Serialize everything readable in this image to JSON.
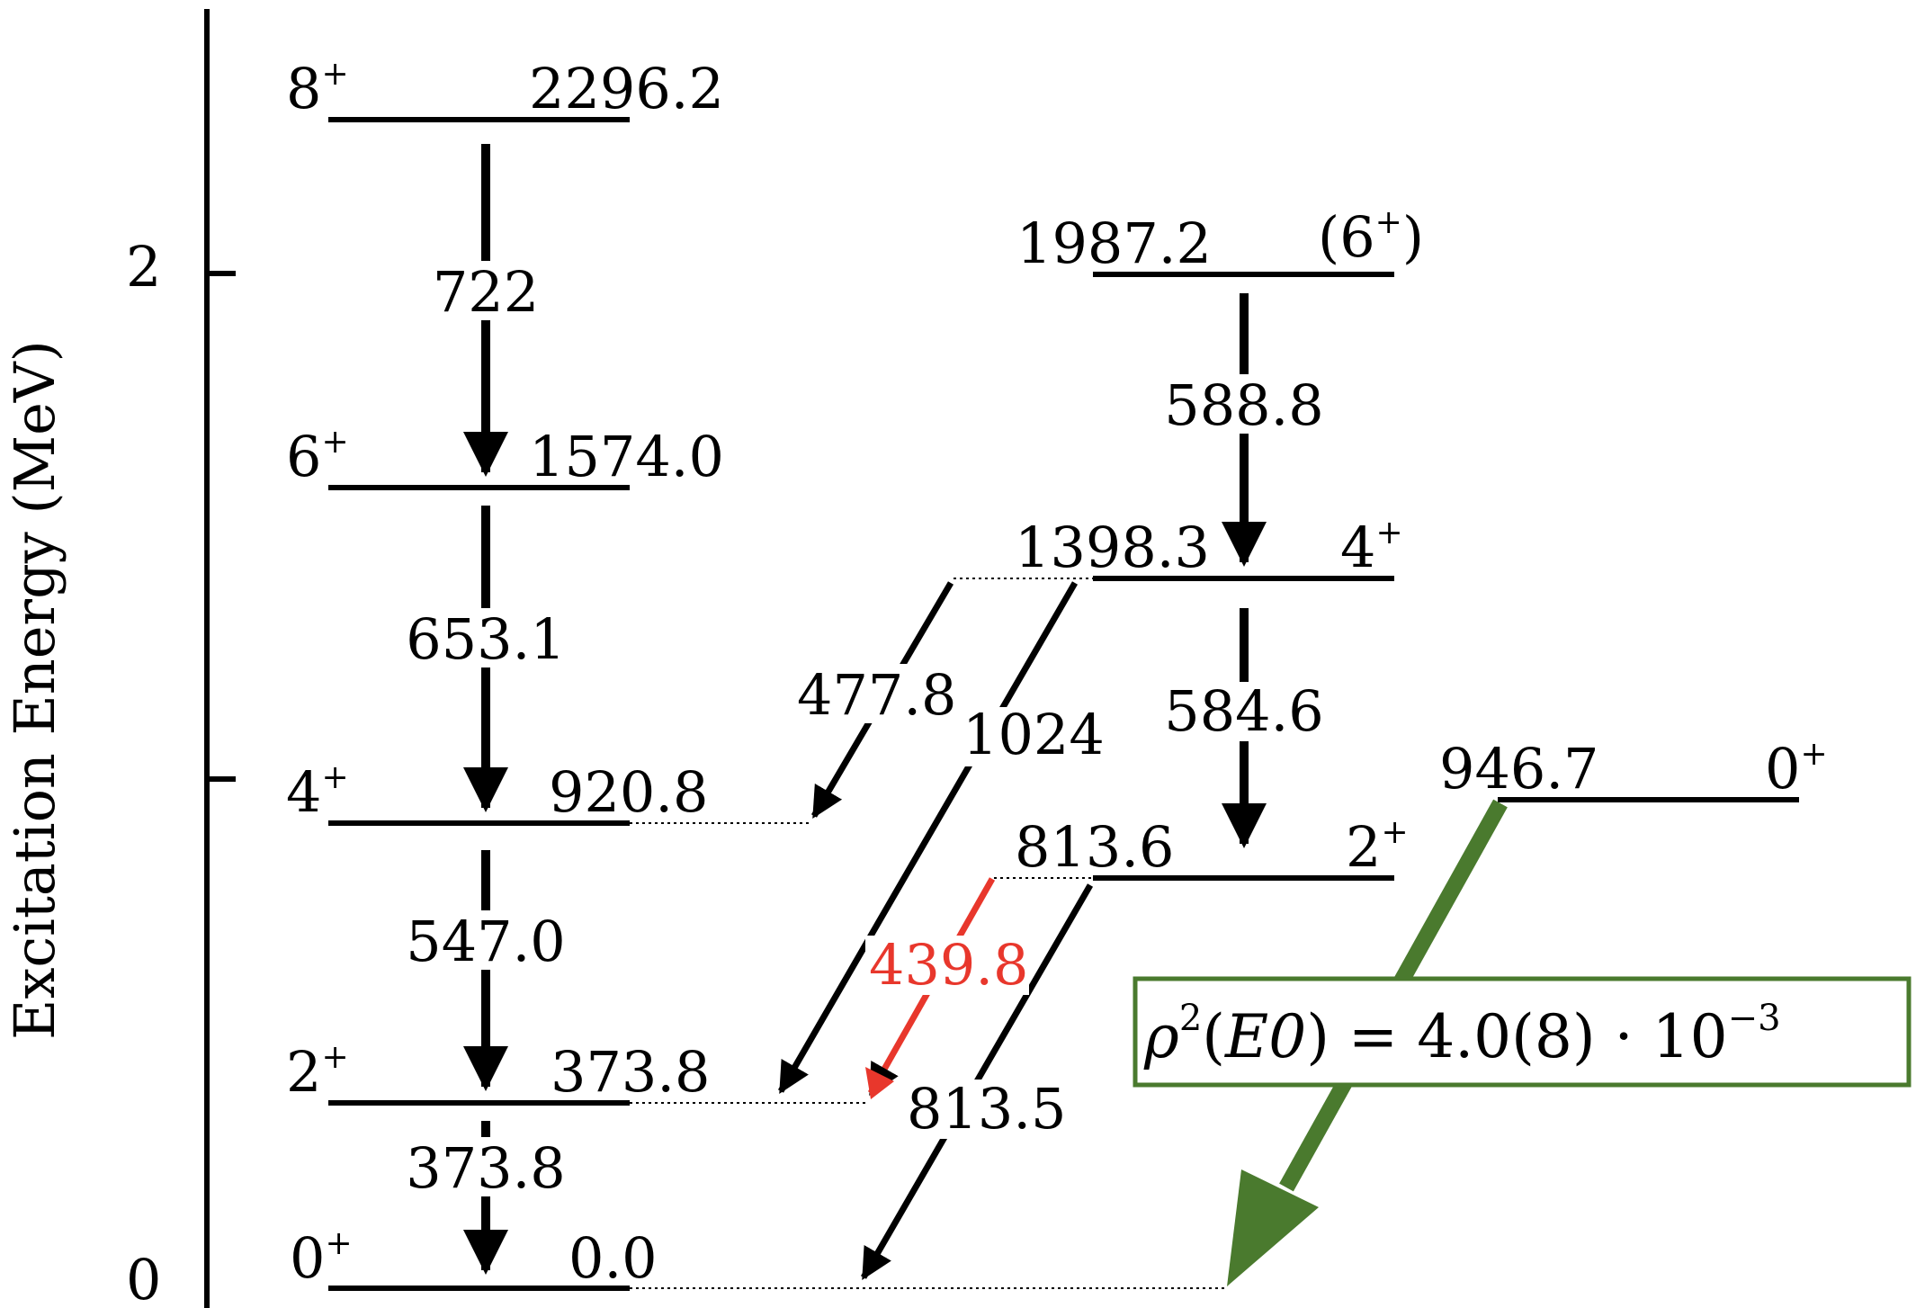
{
  "axis": {
    "label": "Excitation Energy (MeV)",
    "ticks": [
      "0",
      "2"
    ]
  },
  "levels": {
    "gsb_8": {
      "spin": "8",
      "parity": "+",
      "energy": "2296.2"
    },
    "gsb_6": {
      "spin": "6",
      "parity": "+",
      "energy": "1574.0"
    },
    "gsb_4": {
      "spin": "4",
      "parity": "+",
      "energy": "920.8"
    },
    "gsb_2": {
      "spin": "2",
      "parity": "+",
      "energy": "373.8"
    },
    "gsb_0": {
      "spin": "0",
      "parity": "+",
      "energy": "0.0"
    },
    "band_6": {
      "spin_open": "(6",
      "parity": "+",
      "spin_close": ")",
      "energy": "1987.2"
    },
    "band_4": {
      "spin": "4",
      "parity": "+",
      "energy": "1398.3"
    },
    "band_2": {
      "spin": "2",
      "parity": "+",
      "energy": "813.6"
    },
    "zero_plus": {
      "spin": "0",
      "parity": "+",
      "energy": "946.7"
    }
  },
  "transitions": {
    "t722": "722",
    "t653": "653.1",
    "t547": "547.0",
    "t373": "373.8",
    "t588": "588.8",
    "t584": "584.6",
    "t477": "477.8",
    "t1024": "1024",
    "t439": "439.8",
    "t813": "813.5"
  },
  "e0_box": {
    "text": "ρ²(E0) = 4.0(8) · 10⁻³",
    "rho": "ρ",
    "sup2": "2",
    "paren_open": "(",
    "e0": "E0",
    "rest": ") = 4.0(8) · 10",
    "exp": "−3"
  },
  "colors": {
    "highlight_transition": "#e8372c",
    "e0_transition": "#4a7a2e",
    "e0_box_border": "#4a7a2e"
  }
}
